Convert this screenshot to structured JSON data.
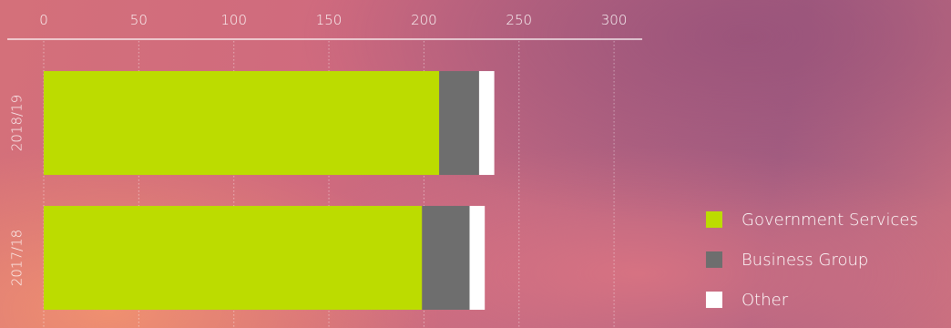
{
  "chart_data": {
    "type": "bar",
    "orientation": "horizontal",
    "stacked": true,
    "categories": [
      "2018/19",
      "2017/18"
    ],
    "series": [
      {
        "name": "Government Services",
        "values": [
          208,
          199
        ],
        "color": "#bcdc00"
      },
      {
        "name": "Business Group",
        "values": [
          21,
          25
        ],
        "color": "#6e6e6e"
      },
      {
        "name": "Other",
        "values": [
          8,
          8
        ],
        "color": "#ffffff"
      }
    ],
    "x_ticks": [
      "0",
      "50",
      "100",
      "150",
      "200",
      "250",
      "300"
    ],
    "xlim": [
      0,
      300
    ],
    "x_axis_position": "top",
    "grid": "vertical dotted",
    "legend_position": "bottom-right"
  }
}
